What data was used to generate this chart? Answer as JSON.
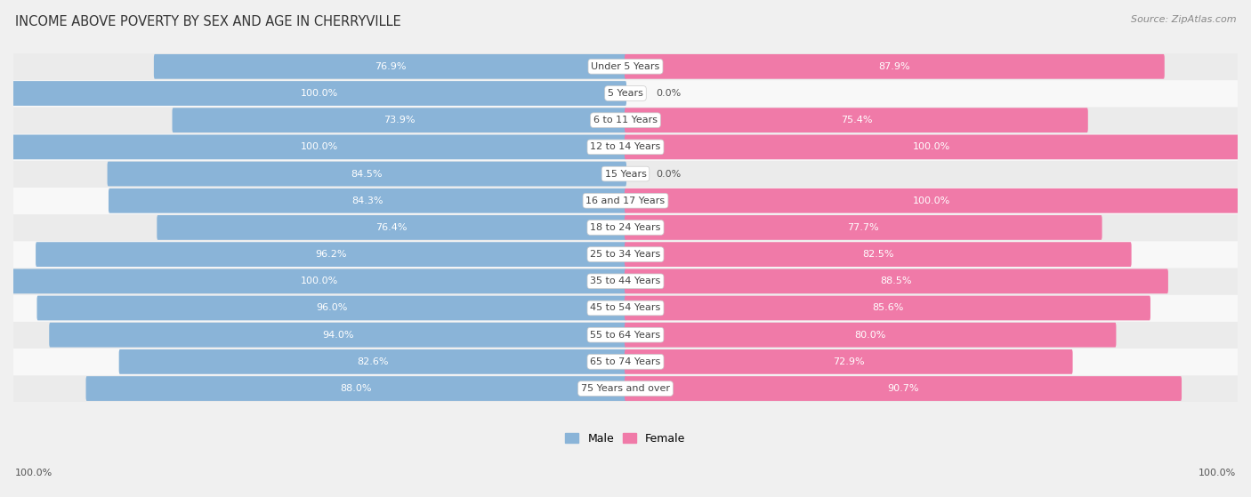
{
  "title": "INCOME ABOVE POVERTY BY SEX AND AGE IN CHERRYVILLE",
  "source": "Source: ZipAtlas.com",
  "categories": [
    "Under 5 Years",
    "5 Years",
    "6 to 11 Years",
    "12 to 14 Years",
    "15 Years",
    "16 and 17 Years",
    "18 to 24 Years",
    "25 to 34 Years",
    "35 to 44 Years",
    "45 to 54 Years",
    "55 to 64 Years",
    "65 to 74 Years",
    "75 Years and over"
  ],
  "male_values": [
    76.9,
    100.0,
    73.9,
    100.0,
    84.5,
    84.3,
    76.4,
    96.2,
    100.0,
    96.0,
    94.0,
    82.6,
    88.0
  ],
  "female_values": [
    87.9,
    0.0,
    75.4,
    100.0,
    0.0,
    100.0,
    77.7,
    82.5,
    88.5,
    85.6,
    80.0,
    72.9,
    90.7
  ],
  "male_color": "#8ab4d8",
  "female_color": "#f07aa8",
  "male_color_light": "#b8d4ea",
  "female_color_light": "#f8b0cc",
  "male_label": "Male",
  "female_label": "Female",
  "value_text_color": "#ffffff",
  "bar_height": 0.62,
  "row_colors": [
    "#ebebeb",
    "#f8f8f8"
  ],
  "title_fontsize": 10.5,
  "source_fontsize": 8,
  "label_fontsize": 8,
  "value_fontsize": 8,
  "max_value": 100.0,
  "bottom_label": "100.0%"
}
